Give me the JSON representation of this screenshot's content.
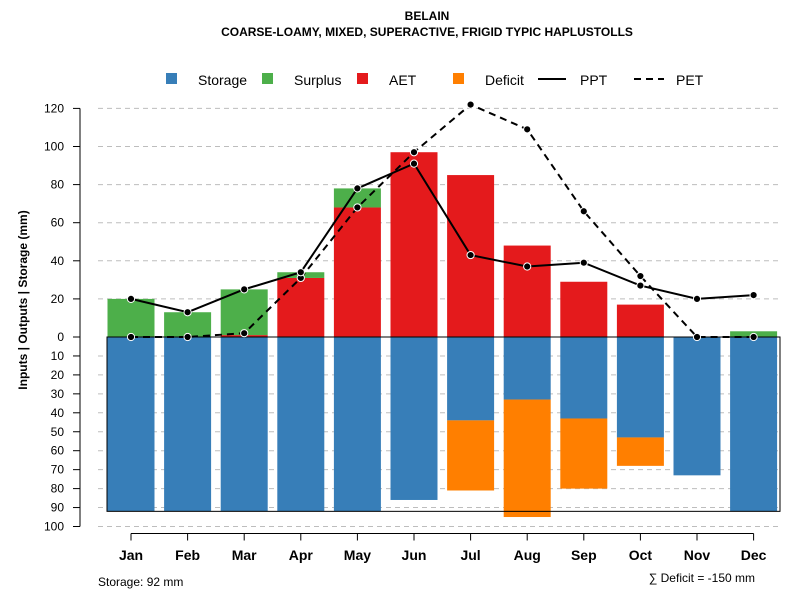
{
  "chart_data": {
    "type": "bar",
    "title": "BELAIN",
    "subtitle": "COARSE-LOAMY, MIXED, SUPERACTIVE, FRIGID TYPIC HAPLUSTOLLS",
    "ylabel": "Inputs | Outputs | Storage    (mm)",
    "categories": [
      "Jan",
      "Feb",
      "Mar",
      "Apr",
      "May",
      "Jun",
      "Jul",
      "Aug",
      "Sep",
      "Oct",
      "Nov",
      "Dec"
    ],
    "upper_ticks": [
      "0",
      "20",
      "40",
      "60",
      "80",
      "100",
      "120"
    ],
    "lower_ticks": [
      "0",
      "10",
      "20",
      "30",
      "40",
      "50",
      "60",
      "70",
      "80",
      "90",
      "100"
    ],
    "ylim_upper": [
      0,
      125
    ],
    "ylim_lower": [
      0,
      100
    ],
    "legend": {
      "storage": "Storage",
      "surplus": "Surplus",
      "aet": "AET",
      "deficit": "Deficit",
      "ppt": "PPT",
      "pet": "PET"
    },
    "colors": {
      "storage": "#377eb8",
      "surplus": "#4daf4a",
      "aet": "#e41a1c",
      "deficit": "#ff7f00",
      "ppt": "#000000",
      "pet": "#000000"
    },
    "series": [
      {
        "name": "AET",
        "values": [
          0,
          0,
          1,
          31,
          68,
          97,
          85,
          48,
          29,
          17,
          0,
          0
        ]
      },
      {
        "name": "Surplus",
        "values": [
          20,
          13,
          24,
          3,
          10,
          0,
          0,
          0,
          0,
          0,
          0,
          3
        ]
      },
      {
        "name": "Storage",
        "values": [
          92,
          92,
          92,
          92,
          92,
          86,
          44,
          33,
          43,
          53,
          73,
          92
        ]
      },
      {
        "name": "Deficit",
        "values": [
          0,
          0,
          0,
          0,
          0,
          0,
          37,
          62,
          37,
          15,
          0,
          0
        ]
      },
      {
        "name": "PPT",
        "values": [
          20,
          13,
          25,
          34,
          78,
          91,
          43,
          37,
          39,
          27,
          20,
          22
        ]
      },
      {
        "name": "PET",
        "values": [
          0,
          0,
          2,
          31,
          68,
          97,
          122,
          109,
          66,
          32,
          0,
          0
        ]
      }
    ],
    "storage_capacity": 92,
    "storage_note": "Storage: 92 mm",
    "deficit_note": "∑ Deficit = -150 mm"
  }
}
